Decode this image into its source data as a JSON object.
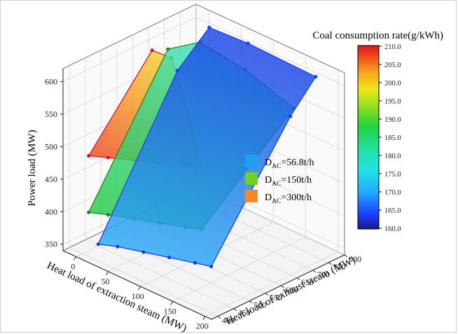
{
  "chart_data": {
    "type": "surface3d",
    "title": "",
    "xlabel": "Heat load of extraction steam (MW)",
    "ylabel": "Heat load of exhaust steam (MW)",
    "zlabel": "Power load (MW)",
    "xticks": [
      "0",
      "50",
      "100",
      "150",
      "200"
    ],
    "yticks": [
      "400",
      "450",
      "500",
      "550",
      "600",
      "650",
      "700",
      "750",
      "800"
    ],
    "zticks": [
      "350",
      "400",
      "450",
      "500",
      "550",
      "600"
    ],
    "xlim": [
      -20,
      210
    ],
    "ylim": [
      380,
      800
    ],
    "zlim": [
      340,
      620
    ],
    "colorbar": {
      "title": "Coal consumption rate(g/kWh)",
      "ticks": [
        "160.0",
        "165.0",
        "170.0",
        "175.0",
        "180.0",
        "185.0",
        "190.0",
        "195.0",
        "200.0",
        "205.0",
        "210.0"
      ],
      "range": [
        160,
        210
      ]
    },
    "series": [
      {
        "name_main": "D",
        "name_sub": "AC",
        "name_rest": "=56.8t/h",
        "color": "#1a8fe6",
        "marker_color": "#1e3cff",
        "coal_rate_range": [
          162,
          172
        ],
        "outline": [
          [
            10,
            430,
            352
          ],
          [
            40,
            430,
            362
          ],
          [
            80,
            430,
            372
          ],
          [
            120,
            430,
            382
          ],
          [
            160,
            430,
            392
          ],
          [
            185,
            430,
            398
          ],
          [
            185,
            680,
            570
          ],
          [
            185,
            760,
            612
          ],
          [
            80,
            760,
            615
          ],
          [
            20,
            760,
            612
          ],
          [
            10,
            680,
            560
          ],
          [
            10,
            430,
            352
          ]
        ]
      },
      {
        "name_main": "D",
        "name_sub": "AC",
        "name_rest": "=150t/h",
        "color": "#5fd41a",
        "marker_color": "#1a8a1a",
        "coal_rate_range": [
          176,
          190
        ],
        "outline": [
          [
            10,
            400,
            408
          ],
          [
            40,
            400,
            418
          ],
          [
            80,
            400,
            430
          ],
          [
            120,
            400,
            442
          ],
          [
            160,
            400,
            454
          ],
          [
            185,
            400,
            462
          ],
          [
            185,
            690,
            580
          ],
          [
            110,
            690,
            605
          ],
          [
            40,
            690,
            615
          ],
          [
            10,
            650,
            600
          ],
          [
            10,
            400,
            408
          ]
        ]
      },
      {
        "name_main": "D",
        "name_sub": "AC",
        "name_rest": "=300t/h",
        "color": "#f08a2a",
        "marker_color": "#e0102a",
        "coal_rate_range": [
          192,
          206
        ],
        "outline": [
          [
            10,
            400,
            495
          ],
          [
            40,
            400,
            506
          ],
          [
            80,
            400,
            520
          ],
          [
            120,
            400,
            534
          ],
          [
            160,
            400,
            548
          ],
          [
            185,
            400,
            557
          ],
          [
            100,
            520,
            590
          ],
          [
            40,
            600,
            612
          ],
          [
            10,
            600,
            610
          ],
          [
            10,
            400,
            495
          ]
        ]
      }
    ],
    "legend_position": "right"
  }
}
